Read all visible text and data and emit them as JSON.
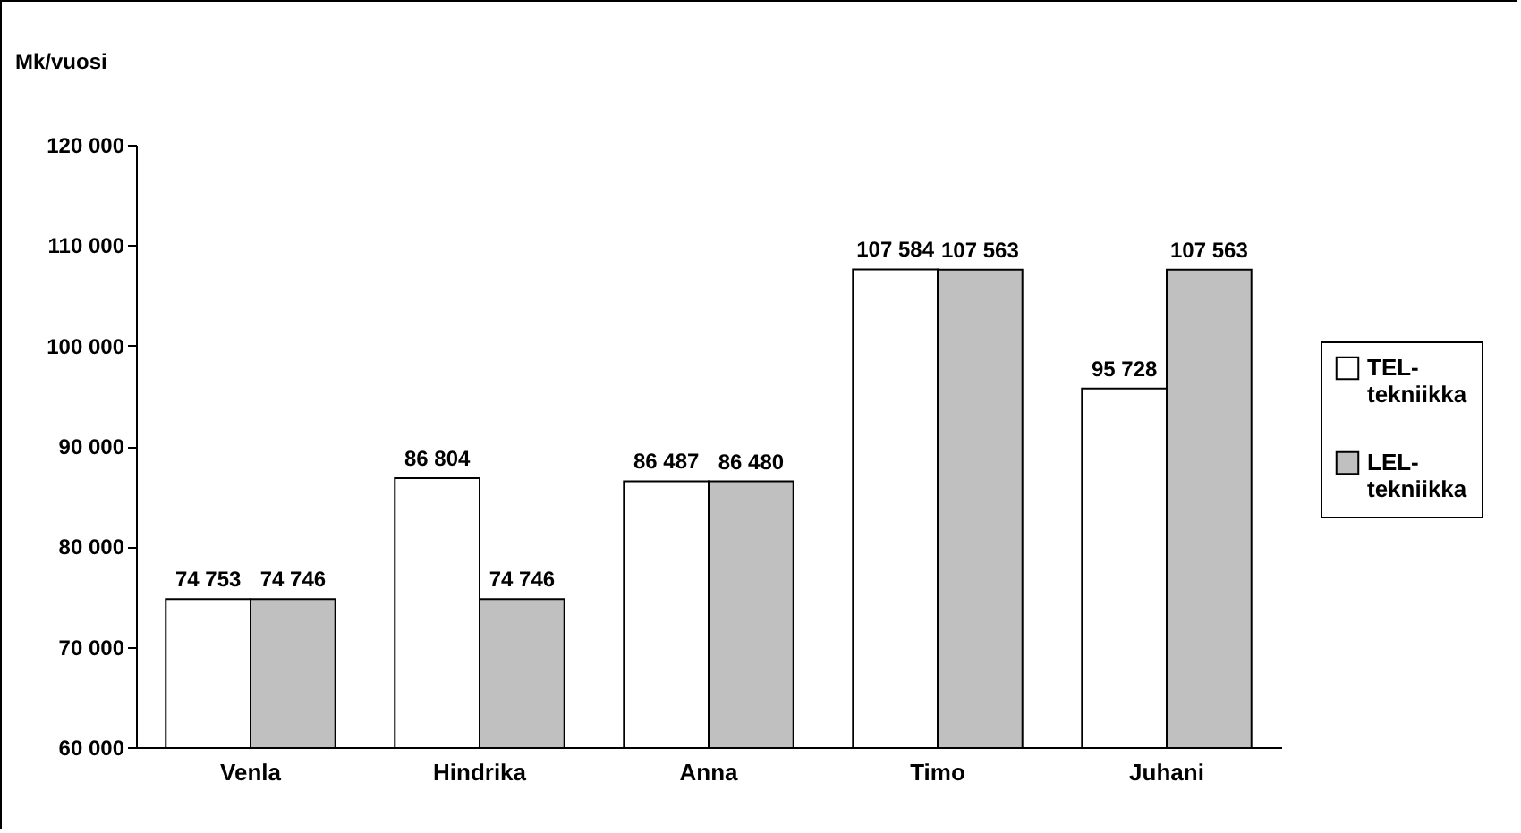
{
  "chart_data": {
    "type": "bar",
    "ylabel": "Mk/vuosi",
    "categories": [
      "Venla",
      "Hindrika",
      "Anna",
      "Timo",
      "Juhani"
    ],
    "series": [
      {
        "name": "TEL-tekniikka",
        "color": "#ffffff",
        "values": [
          74753,
          86804,
          86487,
          107584,
          95728
        ],
        "value_labels": [
          "74 753",
          "86 804",
          "86 487",
          "107 584",
          "95 728"
        ]
      },
      {
        "name": "LEL-tekniikka",
        "color": "#c0c0c0",
        "values": [
          74746,
          74746,
          86480,
          107563,
          107563
        ],
        "value_labels": [
          "74 746",
          "74 746",
          "86 480",
          "107 563",
          "107 563"
        ]
      }
    ],
    "ylim": [
      60000,
      120000
    ],
    "yticks": [
      {
        "value": 60000,
        "label": "60 000"
      },
      {
        "value": 70000,
        "label": "70 000"
      },
      {
        "value": 80000,
        "label": "80 000"
      },
      {
        "value": 90000,
        "label": "90 000"
      },
      {
        "value": 100000,
        "label": "100 000"
      },
      {
        "value": 110000,
        "label": "110 000"
      },
      {
        "value": 120000,
        "label": "120 000"
      }
    ],
    "grid": false,
    "legend": "right"
  }
}
